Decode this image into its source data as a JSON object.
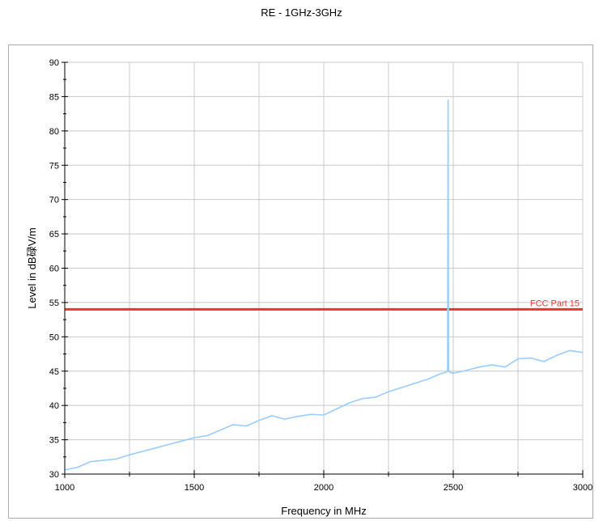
{
  "chart_data": {
    "type": "line",
    "title": "RE - 1GHz-3GHz",
    "xlabel": "Frequency in MHz",
    "ylabel": "Level in dB碌V/m",
    "xlim": [
      1000,
      3000
    ],
    "ylim": [
      30,
      90
    ],
    "x_ticks": [
      "1000",
      "1500",
      "2000",
      "2500",
      "3000"
    ],
    "y_ticks": [
      "30",
      "35",
      "40",
      "45",
      "50",
      "55",
      "60",
      "65",
      "70",
      "75",
      "80",
      "85",
      "90"
    ],
    "grid": true,
    "series": [
      {
        "color": "#99ccff",
        "x": [
          1000,
          1050,
          1100,
          1150,
          1200,
          1250,
          1300,
          1350,
          1400,
          1450,
          1500,
          1550,
          1600,
          1650,
          1700,
          1750,
          1800,
          1850,
          1900,
          1950,
          2000,
          2050,
          2100,
          2150,
          2200,
          2250,
          2300,
          2350,
          2400,
          2450,
          2470,
          2478,
          2480,
          2482,
          2490,
          2500,
          2550,
          2600,
          2650,
          2700,
          2750,
          2800,
          2850,
          2900,
          2950,
          3000
        ],
        "y": [
          30.6,
          31.0,
          31.8,
          32.0,
          32.2,
          32.8,
          33.3,
          33.8,
          34.3,
          34.8,
          35.3,
          35.6,
          36.4,
          37.2,
          37.0,
          37.8,
          38.5,
          38.0,
          38.4,
          38.7,
          38.6,
          39.5,
          40.4,
          41.0,
          41.2,
          42.0,
          42.6,
          43.2,
          43.8,
          44.6,
          44.8,
          45.0,
          84.5,
          45.0,
          44.8,
          44.7,
          45.1,
          45.6,
          45.9,
          45.6,
          46.8,
          46.9,
          46.4,
          47.3,
          48.0,
          47.7
        ]
      }
    ],
    "limit_line": {
      "label": "FCC Part 15",
      "value": 54,
      "color": "#ee3333"
    }
  }
}
